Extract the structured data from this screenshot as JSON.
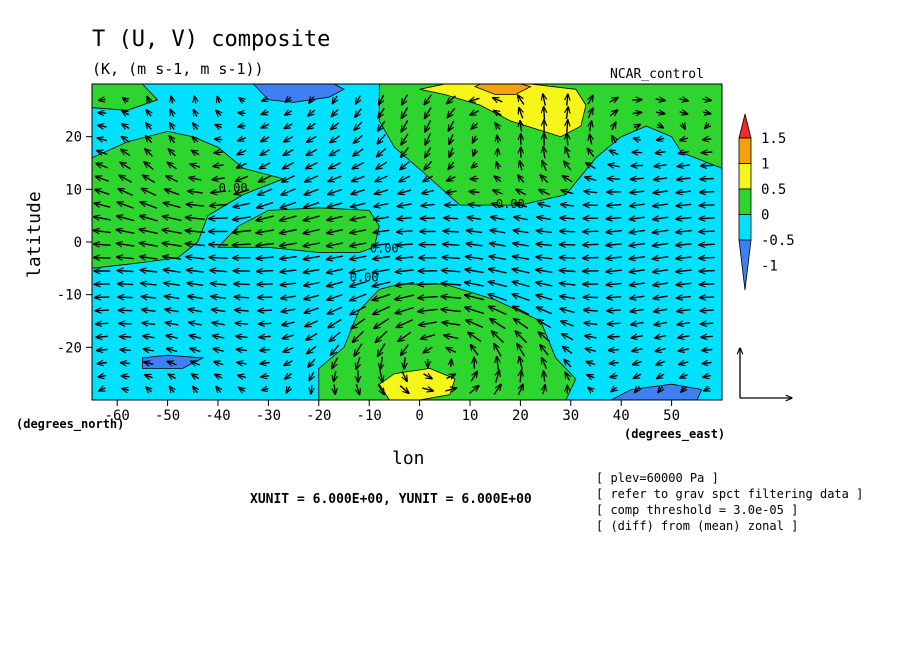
{
  "chart_data": {
    "type": "heatmap",
    "title": "T (U, V) composite",
    "subtitle": "(K, (m s-1, m s-1))",
    "experiment": "NCAR_control",
    "xlabel": "lon",
    "ylabel": "latitude",
    "xunit_label": "(degrees_east)",
    "yunit_label": "(degrees_north)",
    "xlim": [
      -65,
      60
    ],
    "ylim": [
      -30,
      30
    ],
    "xticks": [
      -60,
      -50,
      -40,
      -30,
      -20,
      -10,
      0,
      10,
      20,
      30,
      40,
      50
    ],
    "yticks": [
      -20,
      -10,
      0,
      10,
      20
    ],
    "colorbar": {
      "levels": [
        "-1",
        "-0.5",
        "0",
        "0.5",
        "1",
        "1.5"
      ],
      "colors": [
        "#3e7ff2",
        "#00e1ff",
        "#2fd52f",
        "#f5f51a",
        "#f5a10a",
        "#ee2a2a"
      ]
    },
    "contour_labels": [
      {
        "text": "0.00",
        "lon": -37,
        "lat": 9.5
      },
      {
        "text": "0.00",
        "lon": 18,
        "lat": 6.5
      },
      {
        "text": "0.00",
        "lon": -7,
        "lat": -2
      },
      {
        "text": "0.00",
        "lon": -11,
        "lat": -7.5
      }
    ],
    "regions": [
      {
        "level": "0",
        "points": [
          [
            -65,
            16
          ],
          [
            -58,
            19
          ],
          [
            -50,
            21
          ],
          [
            -45,
            20
          ],
          [
            -40,
            18
          ],
          [
            -35,
            14
          ],
          [
            -27,
            12
          ],
          [
            -35,
            9
          ],
          [
            -42,
            5
          ],
          [
            -44,
            0
          ],
          [
            -48,
            -3
          ],
          [
            -56,
            -4
          ],
          [
            -65,
            -5
          ]
        ]
      },
      {
        "level": "0",
        "points": [
          [
            -65,
            30
          ],
          [
            -55,
            30
          ],
          [
            -52,
            27
          ],
          [
            -58,
            25
          ],
          [
            -65,
            25.5
          ]
        ]
      },
      {
        "level": "0",
        "points": [
          [
            -40,
            -1
          ],
          [
            -36,
            3
          ],
          [
            -30,
            6
          ],
          [
            -20,
            6.5
          ],
          [
            -10,
            6
          ],
          [
            -8,
            3
          ],
          [
            -9,
            -1
          ],
          [
            -12,
            -2
          ],
          [
            -20,
            -2
          ],
          [
            -30,
            -1
          ],
          [
            -38,
            -1
          ]
        ]
      },
      {
        "level": "0",
        "points": [
          [
            -8,
            30
          ],
          [
            60,
            30
          ],
          [
            60,
            14
          ],
          [
            52,
            17
          ],
          [
            50,
            20
          ],
          [
            45,
            22
          ],
          [
            40,
            20
          ],
          [
            35,
            16
          ],
          [
            29,
            9
          ],
          [
            20,
            7
          ],
          [
            12,
            7
          ],
          [
            8,
            7
          ],
          [
            1,
            13
          ],
          [
            -5,
            18
          ],
          [
            -8,
            23
          ]
        ]
      },
      {
        "level": "0",
        "points": [
          [
            -20,
            -30
          ],
          [
            -20,
            -24
          ],
          [
            -15,
            -20
          ],
          [
            -12,
            -13
          ],
          [
            -8,
            -9
          ],
          [
            -4,
            -8
          ],
          [
            5,
            -8
          ],
          [
            15,
            -11
          ],
          [
            24,
            -15
          ],
          [
            27,
            -22
          ],
          [
            31,
            -26
          ],
          [
            29,
            -30
          ]
        ]
      },
      {
        "level": "0.5",
        "points": [
          [
            0,
            29
          ],
          [
            5,
            28
          ],
          [
            12,
            26
          ],
          [
            18,
            23
          ],
          [
            28,
            20
          ],
          [
            32,
            22
          ],
          [
            33,
            26
          ],
          [
            31,
            29
          ],
          [
            22,
            30
          ],
          [
            5,
            30
          ]
        ]
      },
      {
        "level": "0.5",
        "points": [
          [
            -8,
            -27
          ],
          [
            -5,
            -25
          ],
          [
            2,
            -24
          ],
          [
            7,
            -26
          ],
          [
            6,
            -29
          ],
          [
            0,
            -30
          ],
          [
            -6,
            -30
          ]
        ]
      },
      {
        "level": "1",
        "points": [
          [
            11,
            29.5
          ],
          [
            15,
            28
          ],
          [
            19,
            28
          ],
          [
            22,
            29.5
          ],
          [
            20,
            30
          ],
          [
            12,
            30
          ]
        ]
      },
      {
        "level": "-1",
        "points": [
          [
            -33,
            30
          ],
          [
            -30,
            27
          ],
          [
            -25,
            26.5
          ],
          [
            -18,
            27.5
          ],
          [
            -15,
            29
          ],
          [
            -17,
            30
          ]
        ]
      },
      {
        "level": "-1",
        "points": [
          [
            -55,
            -22
          ],
          [
            -50,
            -21.5
          ],
          [
            -43,
            -22
          ],
          [
            -47,
            -24
          ],
          [
            -55,
            -24
          ]
        ]
      },
      {
        "level": "-1",
        "points": [
          [
            38,
            -30
          ],
          [
            42,
            -28
          ],
          [
            50,
            -27
          ],
          [
            56,
            -28
          ],
          [
            55,
            -30
          ]
        ]
      }
    ],
    "vector_field": {
      "description": "wind vectors (U, V) on 6-degree grid",
      "grid_dx": 6,
      "grid_dy": 6,
      "reference_arrow": "XUNIT = 6.000E+00, YUNIT = 6.000E+00"
    },
    "notes": [
      "[ plev=60000 Pa ]",
      "[ refer to grav spct filtering data ]",
      "[ comp threshold = 3.0e-05 ]",
      "[ (diff) from (mean) zonal ]"
    ]
  }
}
